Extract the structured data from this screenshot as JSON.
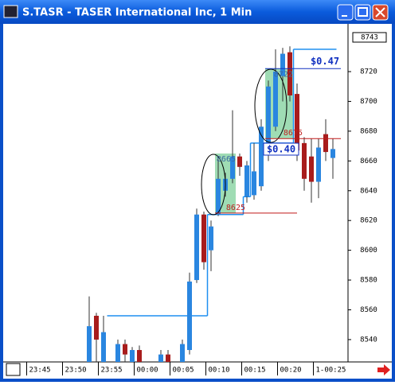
{
  "window": {
    "title": "S.TASR - TASER International Inc, 1 Min"
  },
  "chart_data": {
    "type": "candlestick",
    "open": [
      null,
      null,
      null,
      null,
      null,
      null,
      null,
      null,
      8525,
      8556,
      8525,
      null,
      8525,
      8537,
      8525,
      8533,
      null,
      null,
      8525,
      8530,
      null,
      8525,
      8533,
      8580,
      8624,
      8600,
      8624,
      8640,
      8648,
      8663,
      8636,
      8637,
      8643,
      8664,
      8683,
      8717,
      8733,
      8705,
      8672,
      8663,
      8646,
      8678,
      8662
    ],
    "high": [
      null,
      null,
      null,
      null,
      null,
      null,
      null,
      null,
      8569,
      8558,
      8556,
      null,
      8540,
      8540,
      8535,
      8536,
      null,
      null,
      8533,
      8533,
      null,
      8540,
      8585,
      8628,
      8626,
      8620,
      8661,
      8652,
      8694,
      8665,
      8660,
      8672,
      8688,
      8714,
      8735,
      8736,
      8737,
      8712,
      8676,
      8675,
      8675,
      8688,
      8675
    ],
    "low": [
      null,
      null,
      null,
      null,
      null,
      null,
      null,
      null,
      8525,
      8525,
      8525,
      null,
      8525,
      8525,
      8525,
      8525,
      null,
      null,
      8525,
      8525,
      null,
      8525,
      8530,
      8578,
      8587,
      8586,
      8623,
      8636,
      8645,
      8650,
      8632,
      8634,
      8640,
      8660,
      8680,
      8700,
      8700,
      8660,
      8640,
      8632,
      8635,
      8660,
      8648
    ],
    "close": [
      null,
      null,
      null,
      null,
      null,
      null,
      null,
      null,
      8549,
      8540,
      8545,
      null,
      8537,
      8530,
      8533,
      8525,
      null,
      null,
      8530,
      8525,
      null,
      8537,
      8579,
      8624,
      8592,
      8616,
      8648,
      8648,
      8663,
      8656,
      8657,
      8653,
      8683,
      8710,
      8720,
      8732,
      8704,
      8667,
      8648,
      8646,
      8669,
      8666,
      8668
    ],
    "up_color": "#2a86e0",
    "down_color": "#a81c1c",
    "ylim": [
      8525,
      8751
    ],
    "yticks": [
      8540,
      8560,
      8580,
      8600,
      8620,
      8640,
      8660,
      8680,
      8700,
      8720
    ],
    "last_price": 8743,
    "xtick_labels": [
      "23:45",
      "23:50",
      "23:55",
      "00:00",
      "00:05",
      "00:10",
      "00:15",
      "00:20",
      "1-00:25"
    ],
    "stop_line": {
      "color": "#1e8ff0",
      "values": [
        null,
        null,
        null,
        null,
        null,
        null,
        null,
        null,
        null,
        null,
        null,
        8556,
        8556,
        8556,
        8556,
        8556,
        8556,
        8556,
        8556,
        8556,
        8556,
        8556,
        8556,
        8556,
        8556,
        8624,
        8624,
        8624,
        8624,
        8624,
        8636,
        8672,
        8672,
        8672,
        8672,
        8672,
        8672,
        8735,
        8735,
        8735,
        8735,
        8735,
        8735
      ]
    },
    "zones": [
      {
        "high": 8665,
        "low": 8625,
        "move": "$0.40"
      },
      {
        "high": 8722,
        "low": 8675,
        "move": "$0.47"
      }
    ],
    "zone_color": "#9fdcb4"
  }
}
